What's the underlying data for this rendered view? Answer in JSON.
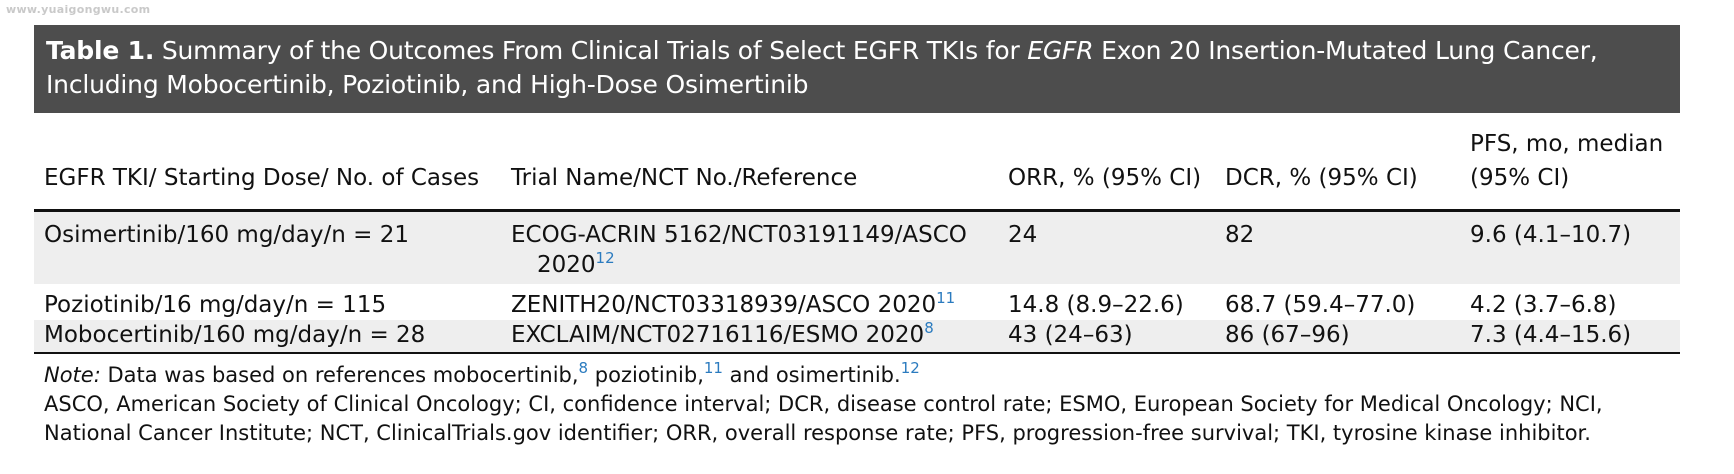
{
  "watermark": "www.yuaigongwu.com",
  "title": {
    "label": "Table 1.",
    "text_before": " Summary of the Outcomes From Clinical Trials of Select EGFR TKIs for ",
    "text_italic": "EGFR",
    "text_after": " Exon 20 Insertion-Mutated Lung Cancer, Including Mobocertinib, Poziotinib, and High-Dose Osimertinib"
  },
  "columns": [
    "EGFR TKI/ Starting Dose/ No. of Cases",
    "Trial Name/NCT No./Reference",
    "ORR, % (95% CI)",
    "DCR, % (95% CI)",
    "PFS, mo, median (95% CI)"
  ],
  "rows": [
    {
      "tki": "Osimertinib/160 mg/day/n = 21",
      "trial": "ECOG-ACRIN 5162/NCT03191149/ASCO",
      "trial_cont": "2020",
      "trial_ref": "12",
      "orr": "24",
      "dcr": "82",
      "pfs": "9.6 (4.1–10.7)"
    },
    {
      "tki": "Poziotinib/16 mg/day/n = 115",
      "trial": "ZENITH20/NCT03318939/ASCO 2020",
      "trial_ref": "11",
      "orr": "14.8 (8.9–22.6)",
      "dcr": "68.7 (59.4–77.0)",
      "pfs": "4.2 (3.7–6.8)"
    },
    {
      "tki": "Mobocertinib/160 mg/day/n = 28",
      "trial": "EXCLAIM/NCT02716116/ESMO 2020",
      "trial_ref": "8",
      "orr": "43 (24–63)",
      "dcr": "86 (67–96)",
      "pfs": "7.3 (4.4–15.6)"
    }
  ],
  "footnote": {
    "note_label": "Note:",
    "note_text_1": " Data was based on references mobocertinib,",
    "ref_1": "8",
    "note_text_2": " poziotinib,",
    "ref_2": "11",
    "note_text_3": " and osimertinib.",
    "ref_3": "12",
    "abbreviations": "ASCO, American Society of Clinical Oncology; CI, confidence interval; DCR, disease control rate; ESMO, European Society for Medical Oncology; NCI, National Cancer Institute; NCT, ClinicalTrials.gov identifier; ORR, overall response rate; PFS, progression-free survival; TKI, tyrosine kinase inhibitor."
  },
  "colors": {
    "title_bar": "#4d4d4d",
    "row_shade": "#eeeeee",
    "reference_link": "#2b7bbf"
  }
}
